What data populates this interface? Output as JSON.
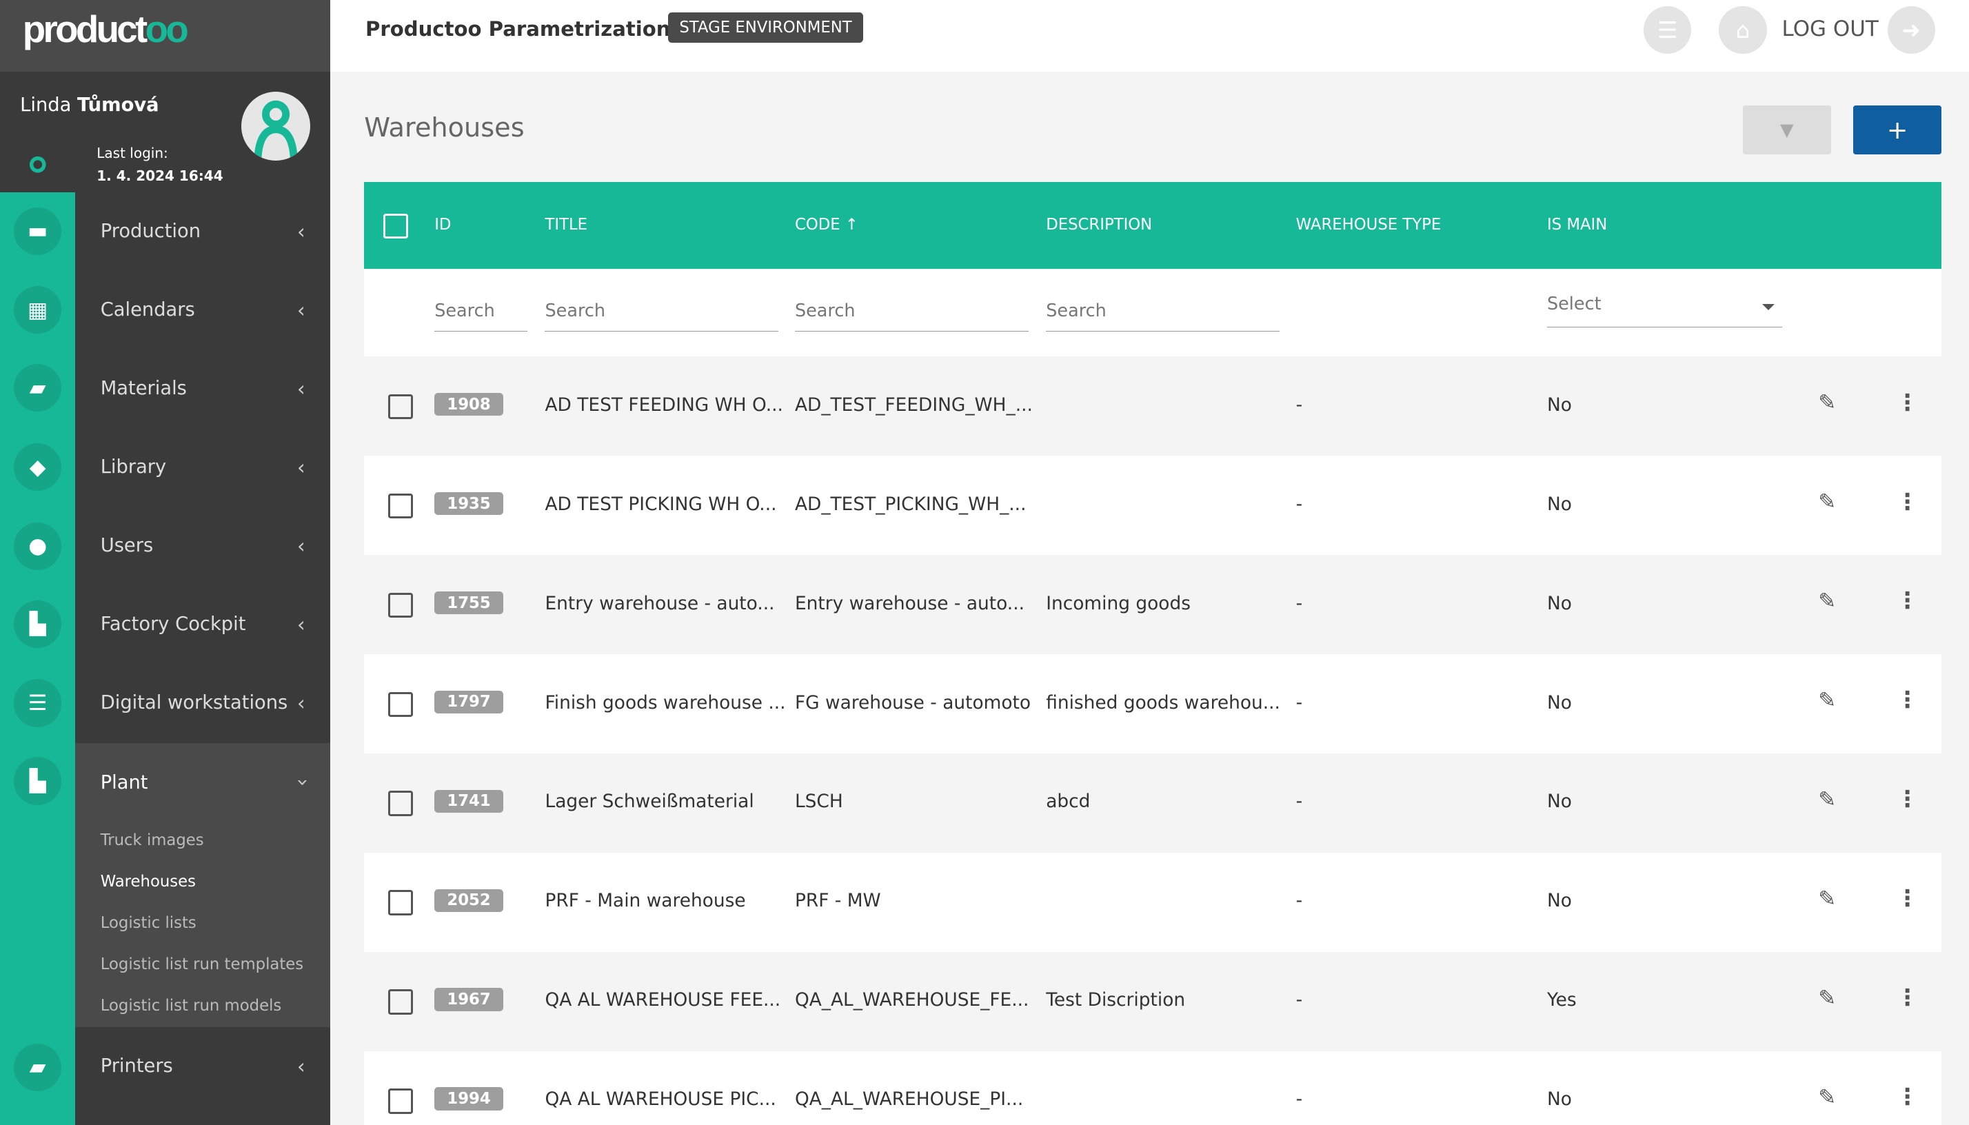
{
  "brand": {
    "logo_text": "productoo",
    "accent": "#17b897"
  },
  "header": {
    "title": "Productoo Parametrization",
    "env_badge": "STAGE ENVIRONMENT",
    "logout_label": "LOG OUT"
  },
  "user": {
    "first_name": "Linda",
    "last_name": "Tůmová",
    "last_login_label": "Last login:",
    "last_login": "1. 4. 2024 16:44"
  },
  "sidebar": {
    "items": [
      {
        "label": "Production",
        "icon": "conveyor-icon"
      },
      {
        "label": "Calendars",
        "icon": "calendar-icon"
      },
      {
        "label": "Materials",
        "icon": "folder-open-icon"
      },
      {
        "label": "Library",
        "icon": "tags-icon"
      },
      {
        "label": "Users",
        "icon": "users-icon"
      },
      {
        "label": "Factory Cockpit",
        "icon": "factory-icon"
      },
      {
        "label": "Digital workstations",
        "icon": "list-icon"
      },
      {
        "label": "Plant",
        "icon": "factory-icon",
        "expanded": true,
        "children": [
          "Truck images",
          "Warehouses",
          "Logistic lists",
          "Logistic list run templates",
          "Logistic list run models"
        ],
        "active_child": "Warehouses"
      },
      {
        "label": "Printers",
        "icon": "folder-open-icon"
      }
    ]
  },
  "page": {
    "title": "Warehouses",
    "add_label": "+"
  },
  "table": {
    "columns": [
      "ID",
      "TITLE",
      "CODE",
      "DESCRIPTION",
      "WAREHOUSE TYPE",
      "IS MAIN"
    ],
    "sort": {
      "column": "CODE",
      "direction": "asc"
    },
    "search_placeholder": "Search",
    "select_placeholder": "Select",
    "rows": [
      {
        "id": "1908",
        "title": "AD TEST FEEDING WH O...",
        "code": "AD_TEST_FEEDING_WH_...",
        "description": "",
        "type": "-",
        "is_main": "No"
      },
      {
        "id": "1935",
        "title": "AD TEST PICKING WH O...",
        "code": "AD_TEST_PICKING_WH_...",
        "description": "",
        "type": "-",
        "is_main": "No"
      },
      {
        "id": "1755",
        "title": "Entry warehouse - auto...",
        "code": "Entry warehouse - auto...",
        "description": "Incoming goods",
        "type": "-",
        "is_main": "No"
      },
      {
        "id": "1797",
        "title": "Finish goods warehouse ...",
        "code": "FG warehouse - automoto",
        "description": "finished goods warehou...",
        "type": "-",
        "is_main": "No"
      },
      {
        "id": "1741",
        "title": "Lager Schweißmaterial",
        "code": "LSCH",
        "description": "abcd",
        "type": "-",
        "is_main": "No"
      },
      {
        "id": "2052",
        "title": "PRF - Main warehouse",
        "code": "PRF - MW",
        "description": "",
        "type": "-",
        "is_main": "No"
      },
      {
        "id": "1967",
        "title": "QA AL WAREHOUSE FEE...",
        "code": "QA_AL_WAREHOUSE_FE...",
        "description": "Test Discription",
        "type": "-",
        "is_main": "Yes"
      },
      {
        "id": "1994",
        "title": "QA AL WAREHOUSE PIC...",
        "code": "QA_AL_WAREHOUSE_PI...",
        "description": "",
        "type": "-",
        "is_main": "No"
      }
    ]
  }
}
